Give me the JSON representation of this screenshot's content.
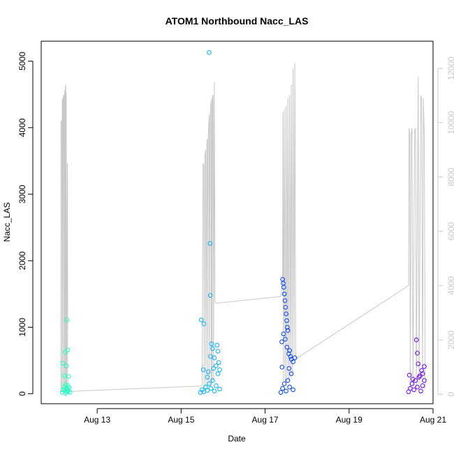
{
  "chart_data": {
    "type": "scatter",
    "title": "ATOM1 Northbound Nacc_LAS",
    "xlabel": "Date",
    "ylabel": "Nacc_LAS",
    "xlim": [
      "2024-08-11T16:00",
      "2024-08-21T00:00"
    ],
    "ylim": [
      -150,
      5300
    ],
    "y2lim": [
      -350,
      13000
    ],
    "x_ticks": [
      {
        "label": "Aug 13",
        "date": "2024-08-13"
      },
      {
        "label": "Aug 15",
        "date": "2024-08-15"
      },
      {
        "label": "Aug 17",
        "date": "2024-08-17"
      },
      {
        "label": "Aug 19",
        "date": "2024-08-19"
      },
      {
        "label": "Aug 21",
        "date": "2024-08-21"
      }
    ],
    "y_ticks": [
      0,
      1000,
      2000,
      3000,
      4000,
      5000
    ],
    "y2_ticks": [
      0,
      2000,
      4000,
      6000,
      8000,
      10000,
      12000
    ],
    "grid": false,
    "series": [
      {
        "axis": "left",
        "color": "#1affc0",
        "points": [
          [
            "2024-08-12T04:00",
            20
          ],
          [
            "2024-08-12T04:30",
            60
          ],
          [
            "2024-08-12T05:00",
            100
          ],
          [
            "2024-08-12T05:30",
            40
          ],
          [
            "2024-08-12T06:00",
            10
          ],
          [
            "2024-08-12T06:30",
            80
          ],
          [
            "2024-08-12T07:00",
            30
          ],
          [
            "2024-08-12T07:30",
            50
          ],
          [
            "2024-08-12T08:00",
            90
          ],
          [
            "2024-08-12T08:30",
            20
          ],
          [
            "2024-08-12T04:15",
            460
          ],
          [
            "2024-08-12T05:10",
            270
          ],
          [
            "2024-08-12T05:40",
            620
          ],
          [
            "2024-08-12T06:20",
            420
          ],
          [
            "2024-08-12T06:40",
            1110
          ],
          [
            "2024-08-12T07:10",
            660
          ],
          [
            "2024-08-12T07:40",
            260
          ],
          [
            "2024-08-12T06:00",
            140
          ],
          [
            "2024-08-12T07:20",
            120
          ]
        ]
      },
      {
        "axis": "left",
        "color": "#00b4ff",
        "points": [
          [
            "2024-08-15T11:00",
            20
          ],
          [
            "2024-08-15T12:00",
            60
          ],
          [
            "2024-08-15T13:00",
            30
          ],
          [
            "2024-08-15T14:00",
            100
          ],
          [
            "2024-08-15T15:00",
            50
          ],
          [
            "2024-08-15T16:00",
            150
          ],
          [
            "2024-08-15T17:00",
            80
          ],
          [
            "2024-08-15T18:00",
            200
          ],
          [
            "2024-08-15T19:00",
            40
          ],
          [
            "2024-08-15T20:00",
            120
          ],
          [
            "2024-08-15T21:00",
            300
          ],
          [
            "2024-08-15T22:00",
            70
          ],
          [
            "2024-08-15T11:30",
            1110
          ],
          [
            "2024-08-15T13:00",
            1050
          ],
          [
            "2024-08-15T16:00",
            5130
          ],
          [
            "2024-08-15T16:30",
            2260
          ],
          [
            "2024-08-15T16:40",
            1480
          ],
          [
            "2024-08-15T12:40",
            360
          ],
          [
            "2024-08-15T15:00",
            250
          ],
          [
            "2024-08-15T16:50",
            560
          ],
          [
            "2024-08-15T17:20",
            750
          ],
          [
            "2024-08-15T18:00",
            680
          ],
          [
            "2024-08-15T19:00",
            540
          ],
          [
            "2024-08-15T20:00",
            420
          ],
          [
            "2024-08-15T20:30",
            730
          ],
          [
            "2024-08-15T21:00",
            640
          ],
          [
            "2024-08-15T21:30",
            470
          ],
          [
            "2024-08-15T22:00",
            360
          ],
          [
            "2024-08-15T15:30",
            330
          ],
          [
            "2024-08-15T18:30",
            380
          ]
        ]
      },
      {
        "axis": "left",
        "color": "#0040ff",
        "points": [
          [
            "2024-08-17T09:00",
            20
          ],
          [
            "2024-08-17T10:00",
            80
          ],
          [
            "2024-08-17T11:00",
            150
          ],
          [
            "2024-08-17T12:00",
            40
          ],
          [
            "2024-08-17T13:00",
            200
          ],
          [
            "2024-08-17T14:00",
            100
          ],
          [
            "2024-08-17T15:00",
            300
          ],
          [
            "2024-08-17T16:00",
            60
          ],
          [
            "2024-08-17T10:00",
            1720
          ],
          [
            "2024-08-17T10:20",
            1660
          ],
          [
            "2024-08-17T10:40",
            1600
          ],
          [
            "2024-08-17T11:00",
            1500
          ],
          [
            "2024-08-17T11:20",
            1400
          ],
          [
            "2024-08-17T11:40",
            1300
          ],
          [
            "2024-08-17T12:00",
            1200
          ],
          [
            "2024-08-17T12:20",
            1100
          ],
          [
            "2024-08-17T12:40",
            1000
          ],
          [
            "2024-08-17T13:00",
            950
          ],
          [
            "2024-08-17T09:30",
            780
          ],
          [
            "2024-08-17T10:30",
            900
          ],
          [
            "2024-08-17T11:30",
            820
          ],
          [
            "2024-08-17T12:30",
            700
          ],
          [
            "2024-08-17T13:30",
            600
          ],
          [
            "2024-08-17T14:00",
            650
          ],
          [
            "2024-08-17T14:30",
            560
          ],
          [
            "2024-08-17T15:00",
            520
          ],
          [
            "2024-08-17T16:00",
            480
          ],
          [
            "2024-08-17T17:00",
            540
          ],
          [
            "2024-08-17T09:40",
            400
          ],
          [
            "2024-08-17T13:40",
            380
          ]
        ]
      },
      {
        "axis": "left",
        "color": "#6a00ff",
        "points": [
          [
            "2024-08-20T10:00",
            30
          ],
          [
            "2024-08-20T11:00",
            80
          ],
          [
            "2024-08-20T12:00",
            150
          ],
          [
            "2024-08-20T13:00",
            60
          ],
          [
            "2024-08-20T14:00",
            200
          ],
          [
            "2024-08-20T15:00",
            100
          ],
          [
            "2024-08-20T16:00",
            250
          ],
          [
            "2024-08-20T17:00",
            40
          ],
          [
            "2024-08-20T18:00",
            120
          ],
          [
            "2024-08-20T19:00",
            200
          ],
          [
            "2024-08-20T10:30",
            280
          ],
          [
            "2024-08-20T14:30",
            810
          ],
          [
            "2024-08-20T15:00",
            610
          ],
          [
            "2024-08-20T15:30",
            450
          ],
          [
            "2024-08-20T17:30",
            350
          ],
          [
            "2024-08-20T18:00",
            300
          ],
          [
            "2024-08-20T19:00",
            410
          ],
          [
            "2024-08-20T16:30",
            270
          ],
          [
            "2024-08-20T12:30",
            220
          ]
        ]
      },
      {
        "axis": "right",
        "color": "#c8c8c8",
        "points": [
          [
            "2024-08-12T03:10",
            200
          ],
          [
            "2024-08-12T03:15",
            10000
          ],
          [
            "2024-08-12T03:45",
            10100
          ],
          [
            "2024-08-12T03:50",
            100
          ],
          [
            "2024-08-12T04:00",
            10800
          ],
          [
            "2024-08-12T04:20",
            10900
          ],
          [
            "2024-08-12T04:25",
            200
          ],
          [
            "2024-08-12T04:40",
            11000
          ],
          [
            "2024-08-12T05:00",
            11000
          ],
          [
            "2024-08-12T05:05",
            100
          ],
          [
            "2024-08-12T05:20",
            11100
          ],
          [
            "2024-08-12T05:30",
            11200
          ],
          [
            "2024-08-12T05:35",
            150
          ],
          [
            "2024-08-12T05:50",
            11300
          ],
          [
            "2024-08-12T06:00",
            11400
          ],
          [
            "2024-08-12T06:05",
            200
          ],
          [
            "2024-08-12T06:20",
            11100
          ],
          [
            "2024-08-12T06:30",
            150
          ],
          [
            "2024-08-12T07:00",
            8500
          ],
          [
            "2024-08-12T07:10",
            100
          ],
          [
            "2024-08-12T07:30",
            100
          ],
          [
            "2024-08-15T11:00",
            300
          ],
          [
            "2024-08-15T12:00",
            350
          ],
          [
            "2024-08-15T12:30",
            8500
          ],
          [
            "2024-08-15T13:00",
            8400
          ],
          [
            "2024-08-15T13:10",
            200
          ],
          [
            "2024-08-15T13:30",
            8800
          ],
          [
            "2024-08-15T14:00",
            9000
          ],
          [
            "2024-08-15T14:10",
            200
          ],
          [
            "2024-08-15T14:40",
            9300
          ],
          [
            "2024-08-15T15:00",
            9400
          ],
          [
            "2024-08-15T15:10",
            300
          ],
          [
            "2024-08-15T15:30",
            9500
          ],
          [
            "2024-08-15T16:00",
            10300
          ],
          [
            "2024-08-15T16:10",
            300
          ],
          [
            "2024-08-15T16:30",
            10000
          ],
          [
            "2024-08-15T17:00",
            10800
          ],
          [
            "2024-08-15T17:10",
            300
          ],
          [
            "2024-08-15T17:30",
            10900
          ],
          [
            "2024-08-15T17:40",
            400
          ],
          [
            "2024-08-15T18:00",
            11000
          ],
          [
            "2024-08-15T18:20",
            11000
          ],
          [
            "2024-08-15T18:30",
            500
          ],
          [
            "2024-08-15T19:00",
            11500
          ],
          [
            "2024-08-15T19:20",
            3400
          ],
          [
            "2024-08-15T20:00",
            3350
          ],
          [
            "2024-08-17T09:00",
            3600
          ],
          [
            "2024-08-17T10:00",
            4100
          ],
          [
            "2024-08-17T10:10",
            10400
          ],
          [
            "2024-08-17T10:30",
            500
          ],
          [
            "2024-08-17T11:00",
            10500
          ],
          [
            "2024-08-17T11:30",
            400
          ],
          [
            "2024-08-17T12:00",
            10600
          ],
          [
            "2024-08-17T12:30",
            500
          ],
          [
            "2024-08-17T13:00",
            10900
          ],
          [
            "2024-08-17T13:30",
            500
          ],
          [
            "2024-08-17T14:00",
            11000
          ],
          [
            "2024-08-17T14:30",
            600
          ],
          [
            "2024-08-17T15:00",
            11400
          ],
          [
            "2024-08-17T15:30",
            700
          ],
          [
            "2024-08-17T16:00",
            12000
          ],
          [
            "2024-08-17T16:30",
            1400
          ],
          [
            "2024-08-17T17:00",
            12200
          ],
          [
            "2024-08-17T17:30",
            1300
          ],
          [
            "2024-08-20T10:00",
            4000
          ],
          [
            "2024-08-20T10:20",
            9800
          ],
          [
            "2024-08-20T10:40",
            9600
          ],
          [
            "2024-08-20T11:00",
            200
          ],
          [
            "2024-08-20T11:30",
            9600
          ],
          [
            "2024-08-20T12:00",
            9800
          ],
          [
            "2024-08-20T12:30",
            300
          ],
          [
            "2024-08-20T13:30",
            9700
          ],
          [
            "2024-08-20T14:00",
            9800
          ],
          [
            "2024-08-20T14:30",
            200
          ],
          [
            "2024-08-20T15:30",
            11700
          ],
          [
            "2024-08-20T16:00",
            400
          ],
          [
            "2024-08-20T17:00",
            11000
          ],
          [
            "2024-08-20T17:30",
            10800
          ],
          [
            "2024-08-20T18:00",
            400
          ],
          [
            "2024-08-20T18:30",
            10900
          ],
          [
            "2024-08-20T19:00",
            9500
          ],
          [
            "2024-08-20T19:30",
            200
          ]
        ]
      }
    ]
  }
}
